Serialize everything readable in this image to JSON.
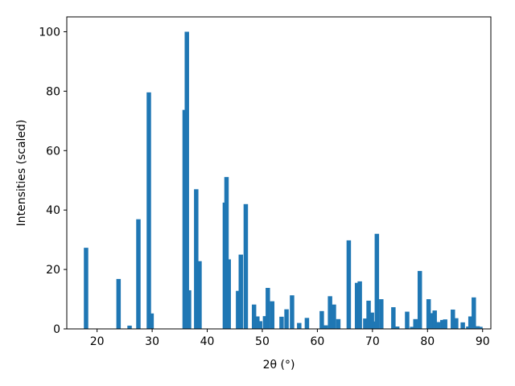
{
  "chart_data": {
    "type": "bar",
    "xlabel": "2θ (°)",
    "ylabel": "Intensities (scaled)",
    "xlim": [
      14.5,
      91.5
    ],
    "ylim": [
      0,
      105
    ],
    "xticks": [
      20,
      30,
      40,
      50,
      60,
      70,
      80,
      90
    ],
    "yticks": [
      0,
      20,
      40,
      60,
      80,
      100
    ],
    "bar_width": 0.8,
    "bar_color": "#1f77b4",
    "grid": false,
    "x": [
      18.0,
      23.9,
      25.9,
      27.5,
      29.4,
      29.9,
      35.9,
      36.3,
      36.7,
      38.0,
      38.6,
      43.2,
      43.5,
      43.9,
      45.6,
      46.1,
      47.0,
      48.5,
      49.1,
      49.6,
      50.5,
      51.0,
      51.8,
      53.5,
      54.4,
      55.4,
      56.7,
      58.1,
      60.8,
      61.5,
      62.3,
      63.0,
      63.8,
      65.7,
      67.2,
      67.7,
      68.7,
      69.3,
      69.9,
      70.3,
      70.8,
      71.6,
      73.8,
      74.5,
      76.3,
      77.2,
      77.8,
      78.6,
      80.2,
      80.7,
      81.3,
      81.9,
      82.7,
      83.2,
      84.6,
      85.2,
      86.4,
      87.4,
      87.8,
      88.4,
      89.1,
      89.6
    ],
    "values": [
      27.3,
      16.8,
      1.1,
      36.9,
      79.6,
      5.2,
      73.7,
      100,
      13.0,
      47.0,
      22.8,
      42.5,
      51.1,
      23.4,
      12.8,
      25.0,
      42.0,
      8.2,
      4.2,
      2.6,
      4.3,
      13.8,
      9.3,
      4.1,
      6.6,
      11.3,
      2.0,
      3.7,
      6.0,
      1.2,
      11.0,
      8.2,
      3.3,
      29.8,
      15.5,
      16.0,
      3.5,
      9.5,
      5.5,
      2.5,
      32.0,
      10.0,
      7.3,
      0.8,
      5.8,
      0.7,
      3.3,
      19.5,
      10.0,
      5.3,
      6.2,
      2.3,
      3.0,
      3.2,
      6.5,
      3.6,
      2.2,
      0.8,
      4.2,
      10.6,
      0.9,
      0.7
    ]
  }
}
